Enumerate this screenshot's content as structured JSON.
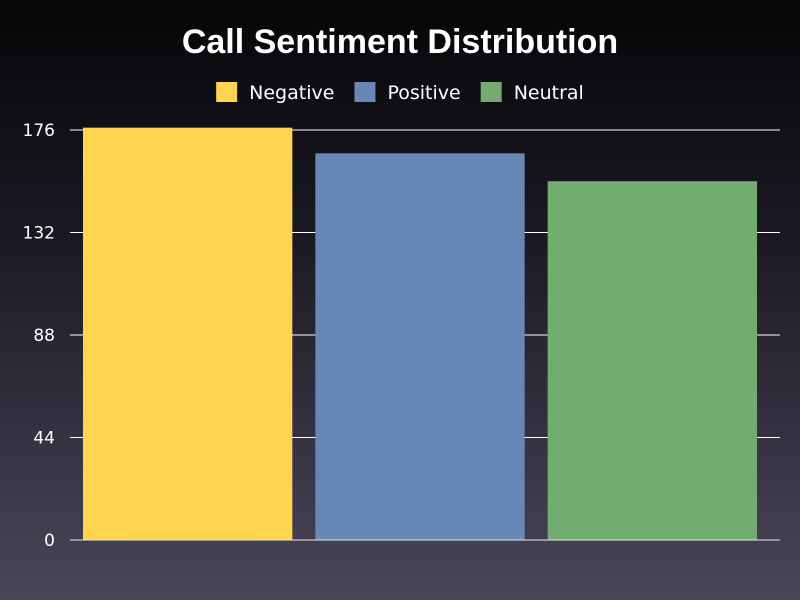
{
  "chart_data": {
    "type": "bar",
    "title": "Call Sentiment Distribution",
    "categories": [
      "Negative",
      "Positive",
      "Neutral"
    ],
    "values": [
      177,
      166,
      154
    ],
    "colors": [
      "#ffd54f",
      "#6787b7",
      "#72ad6f"
    ],
    "legend": [
      "Negative",
      "Positive",
      "Neutral"
    ],
    "legend_position": "top",
    "xlabel": "",
    "ylabel": "",
    "ylim": [
      0,
      176
    ],
    "yticks": [
      0,
      44,
      88,
      132,
      176
    ],
    "grid": true
  }
}
